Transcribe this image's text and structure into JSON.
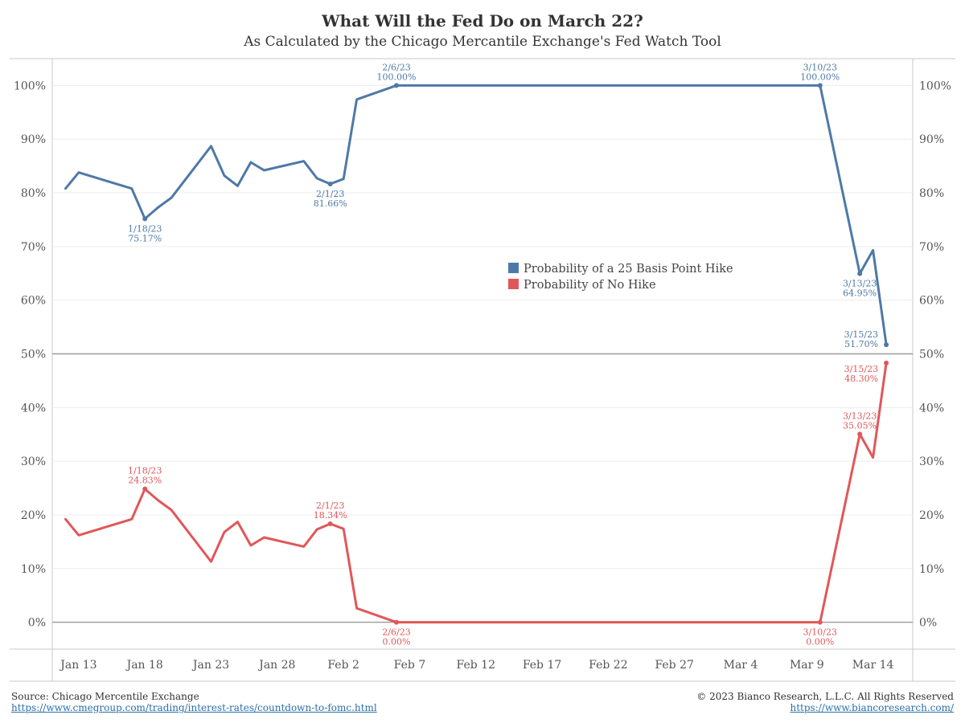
{
  "chart_data": {
    "type": "line",
    "title": "What Will the Fed Do on March 22?",
    "subtitle": "As Calculated by the Chicago Mercantile Exchange's Fed Watch Tool",
    "xlabel": "",
    "ylabel": "",
    "ylim": [
      -5,
      105
    ],
    "yticks": [
      0,
      10,
      20,
      30,
      40,
      50,
      60,
      70,
      80,
      90,
      100
    ],
    "ytick_labels": [
      "0%",
      "10%",
      "20%",
      "30%",
      "40%",
      "50%",
      "60%",
      "70%",
      "80%",
      "90%",
      "100%"
    ],
    "xlim": [
      "2023-01-11",
      "2023-03-17"
    ],
    "xticks": [
      "2023-01-13",
      "2023-01-18",
      "2023-01-23",
      "2023-01-28",
      "2023-02-02",
      "2023-02-07",
      "2023-02-12",
      "2023-02-17",
      "2023-02-22",
      "2023-02-27",
      "2023-03-04",
      "2023-03-09",
      "2023-03-14"
    ],
    "xtick_labels": [
      "Jan 13",
      "Jan 18",
      "Jan 23",
      "Jan 28",
      "Feb 2",
      "Feb 7",
      "Feb 12",
      "Feb 17",
      "Feb 22",
      "Feb 27",
      "Mar 4",
      "Mar 9",
      "Mar 14"
    ],
    "reference_lines": [
      50,
      0
    ],
    "grid": true,
    "legend_position": "center-right",
    "series": [
      {
        "name": "Probability of a 25 Basis Point Hike",
        "color": "#4e79a7",
        "x": [
          "2023-01-12",
          "2023-01-13",
          "2023-01-17",
          "2023-01-18",
          "2023-01-19",
          "2023-01-20",
          "2023-01-23",
          "2023-01-24",
          "2023-01-25",
          "2023-01-26",
          "2023-01-27",
          "2023-01-30",
          "2023-01-31",
          "2023-02-01",
          "2023-02-02",
          "2023-02-03",
          "2023-02-06",
          "2023-03-09",
          "2023-03-10",
          "2023-03-13",
          "2023-03-14",
          "2023-03-15"
        ],
        "values": [
          80.8,
          83.8,
          80.8,
          75.17,
          77.3,
          79.1,
          88.7,
          83.2,
          81.3,
          85.7,
          84.2,
          85.9,
          82.7,
          81.66,
          82.6,
          97.4,
          100.0,
          100.0,
          100.0,
          64.95,
          69.3,
          51.7
        ]
      },
      {
        "name": "Probability of No Hike",
        "color": "#e15759",
        "x": [
          "2023-01-12",
          "2023-01-13",
          "2023-01-17",
          "2023-01-18",
          "2023-01-19",
          "2023-01-20",
          "2023-01-23",
          "2023-01-24",
          "2023-01-25",
          "2023-01-26",
          "2023-01-27",
          "2023-01-30",
          "2023-01-31",
          "2023-02-01",
          "2023-02-02",
          "2023-02-03",
          "2023-02-06",
          "2023-03-09",
          "2023-03-10",
          "2023-03-13",
          "2023-03-14",
          "2023-03-15"
        ],
        "values": [
          19.2,
          16.2,
          19.2,
          24.83,
          22.7,
          20.9,
          11.3,
          16.8,
          18.7,
          14.3,
          15.8,
          14.1,
          17.3,
          18.34,
          17.4,
          2.6,
          0.0,
          0.0,
          0.0,
          35.05,
          30.7,
          48.3
        ]
      }
    ],
    "annotations": [
      {
        "series": 0,
        "x": "2023-01-18",
        "value": 75.17,
        "date": "1/18/23",
        "text": "75.17%",
        "side": "below"
      },
      {
        "series": 0,
        "x": "2023-02-01",
        "value": 81.66,
        "date": "2/1/23",
        "text": "81.66%",
        "side": "below"
      },
      {
        "series": 0,
        "x": "2023-02-06",
        "value": 100.0,
        "date": "2/6/23",
        "text": "100.00%",
        "side": "above"
      },
      {
        "series": 0,
        "x": "2023-03-10",
        "value": 100.0,
        "date": "3/10/23",
        "text": "100.00%",
        "side": "above"
      },
      {
        "series": 0,
        "x": "2023-03-13",
        "value": 64.95,
        "date": "3/13/23",
        "text": "64.95%",
        "side": "below"
      },
      {
        "series": 0,
        "x": "2023-03-15",
        "value": 51.7,
        "date": "3/15/23",
        "text": "51.70%",
        "side": "above-left"
      },
      {
        "series": 1,
        "x": "2023-01-18",
        "value": 24.83,
        "date": "1/18/23",
        "text": "24.83%",
        "side": "above"
      },
      {
        "series": 1,
        "x": "2023-02-01",
        "value": 18.34,
        "date": "2/1/23",
        "text": "18.34%",
        "side": "above"
      },
      {
        "series": 1,
        "x": "2023-02-06",
        "value": 0.0,
        "date": "2/6/23",
        "text": "0.00%",
        "side": "below"
      },
      {
        "series": 1,
        "x": "2023-03-10",
        "value": 0.0,
        "date": "3/10/23",
        "text": "0.00%",
        "side": "below"
      },
      {
        "series": 1,
        "x": "2023-03-13",
        "value": 35.05,
        "date": "3/13/23",
        "text": "35.05%",
        "side": "above"
      },
      {
        "series": 1,
        "x": "2023-03-15",
        "value": 48.3,
        "date": "3/15/23",
        "text": "48.30%",
        "side": "below-left"
      }
    ]
  },
  "footer": {
    "source": "Source: Chicago Mercentile Exchange",
    "source_url": "https://www.cmegroup.com/trading/interest-rates/countdown-to-fomc.html",
    "copyright": "© 2023 Bianco Research, L.L.C. All Rights Reserved",
    "site_url": "https://www.biancoresearch.com/"
  }
}
